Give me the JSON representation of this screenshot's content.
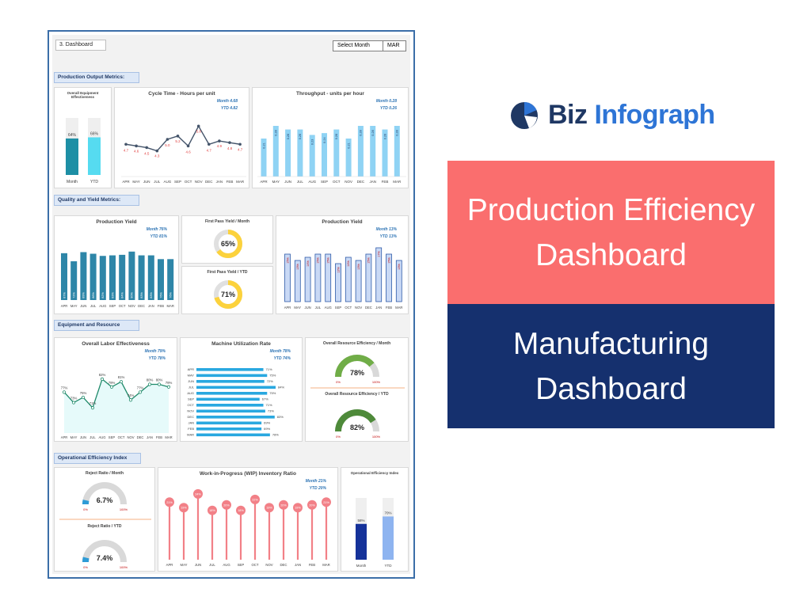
{
  "dashboard": {
    "title": "3. Dashboard",
    "select_month_label": "Select Month",
    "selected_month": "MAR"
  },
  "sections": {
    "production_output": "Production Output Metrics:",
    "quality_yield": "Quality and Yield Metrics:",
    "equipment_resource": "Equipment and Resource",
    "operational_efficiency": "Operational Efficiency Index"
  },
  "months": [
    "APR",
    "MAY",
    "JUN",
    "JUL",
    "AUG",
    "SEP",
    "OCT",
    "NOV",
    "DEC",
    "JAN",
    "FEB",
    "MAR"
  ],
  "oee": {
    "title": "Overall Equipment Effectiveness",
    "categories": [
      "Month",
      "YTD"
    ],
    "values": [
      64,
      66
    ],
    "labels": [
      "64%",
      "66%"
    ]
  },
  "cycle_time": {
    "title": "Cycle Time - Hours per unit",
    "month": "Month 4.68",
    "ytd": "YTD 4.82",
    "values": [
      4.7,
      4.6,
      4.5,
      4.3,
      5.0,
      5.2,
      4.6,
      5.8,
      4.7,
      4.9,
      4.8,
      4.7
    ]
  },
  "throughput": {
    "title": "Throughput - units per hour",
    "month": "Month 0.28",
    "ytd": "YTD 0.26",
    "values": [
      0.21,
      0.28,
      0.26,
      0.26,
      0.23,
      0.24,
      0.26,
      0.21,
      0.28,
      0.28,
      0.26,
      0.28
    ]
  },
  "production_yield_left": {
    "title": "Production Yield",
    "month": "Month 76%",
    "ytd": "YTD 81%",
    "values": [
      87,
      72,
      89,
      86,
      82,
      83,
      84,
      90,
      83,
      83,
      76,
      76
    ]
  },
  "fpy_month": {
    "title": "First Pass Yield / Month",
    "value": 65,
    "label": "65%"
  },
  "fpy_ytd": {
    "title": "First Pass Yield / YTD",
    "value": 71,
    "label": "71%"
  },
  "production_yield_right": {
    "title": "Production Yield",
    "month": "Month 13%",
    "ytd": "YTD 13%",
    "values": [
      15,
      13,
      14,
      15,
      15,
      12,
      14,
      13,
      15,
      17,
      15,
      13
    ]
  },
  "labor": {
    "title": "Overall Labor Effectiveness",
    "month": "Month 79%",
    "ytd": "YTD 78%",
    "values": [
      77,
      73,
      75,
      71,
      82,
      79,
      81,
      74,
      77,
      80,
      80,
      79
    ]
  },
  "machine_util": {
    "title": "Machine Utilization Rate",
    "month": "Month 78%",
    "ytd": "YTD 74%",
    "values": [
      71,
      75,
      72,
      84,
      75,
      67,
      71,
      73,
      83,
      69,
      69,
      78
    ]
  },
  "ore_month": {
    "title": "Overall Resource Efficiency  / Month",
    "value": 78,
    "label": "78%",
    "min": "0%",
    "max": "100%"
  },
  "ore_ytd": {
    "title": "Overall Resource Efficiency / YTD",
    "value": 82,
    "label": "82%",
    "min": "0%",
    "max": "100%"
  },
  "reject_month": {
    "title": "Reject Ratio / Month",
    "value": 6.7,
    "label": "6.7%",
    "min": "0%",
    "max": "100%"
  },
  "reject_ytd": {
    "title": "Reject Ratio / YTD",
    "value": 7.4,
    "label": "7.4%",
    "min": "0%",
    "max": "100%"
  },
  "wip": {
    "title": "Work-in-Progress (WIP) Inventory Ratio",
    "month": "Month 21%",
    "ytd": "YTD 20%",
    "values": [
      21,
      19,
      24,
      18,
      20,
      18,
      22,
      19,
      20,
      19,
      20,
      21
    ]
  },
  "oei": {
    "title": "Operational Efficiency Index",
    "categories": [
      "Month",
      "YTD"
    ],
    "values": [
      58,
      70
    ],
    "labels": [
      "58%",
      "70%"
    ]
  },
  "brand": {
    "logo_text_1": "Biz",
    "logo_text_2": "Infograph",
    "title_line1": "Production Efficiency",
    "title_line2": "Dashboard",
    "subtitle_line1": "Manufacturing",
    "subtitle_line2": "Dashboard"
  },
  "colors": {
    "teal": "#2e86a8",
    "cyan": "#5cd8f2",
    "light_blue": "#8fd3f4",
    "yellow": "#fcd23c",
    "green": "#70ad47",
    "dark_green": "#4e8a3a",
    "red_pin": "#f28087",
    "navy": "#15306e",
    "coral": "#fa6e6e"
  }
}
